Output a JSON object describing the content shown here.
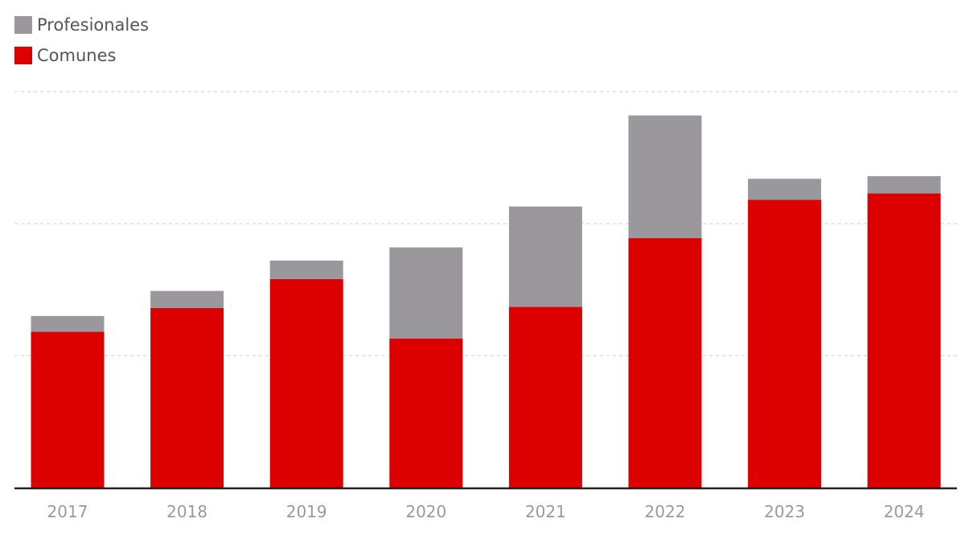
{
  "legend": {
    "items": [
      {
        "label": "Profesionales",
        "color": "#9a989c"
      },
      {
        "label": "Comunes",
        "color": "#dd0000"
      }
    ]
  },
  "chart_data": {
    "type": "bar",
    "stacked": true,
    "categories": [
      "2017",
      "2018",
      "2019",
      "2020",
      "2021",
      "2022",
      "2023",
      "2024"
    ],
    "series": [
      {
        "name": "Comunes",
        "color": "#dd0000",
        "values": [
          118,
          136,
          158,
          113,
          137,
          189,
          218,
          223
        ]
      },
      {
        "name": "Profesionales",
        "color": "#9a989c",
        "values": [
          12,
          13,
          14,
          69,
          76,
          93,
          16,
          13
        ]
      }
    ],
    "ylim": [
      0,
      300
    ],
    "gridlines": [
      100,
      200,
      300
    ],
    "grid": true,
    "y_tick_labels_shown": false,
    "legend_position": "top-left"
  }
}
